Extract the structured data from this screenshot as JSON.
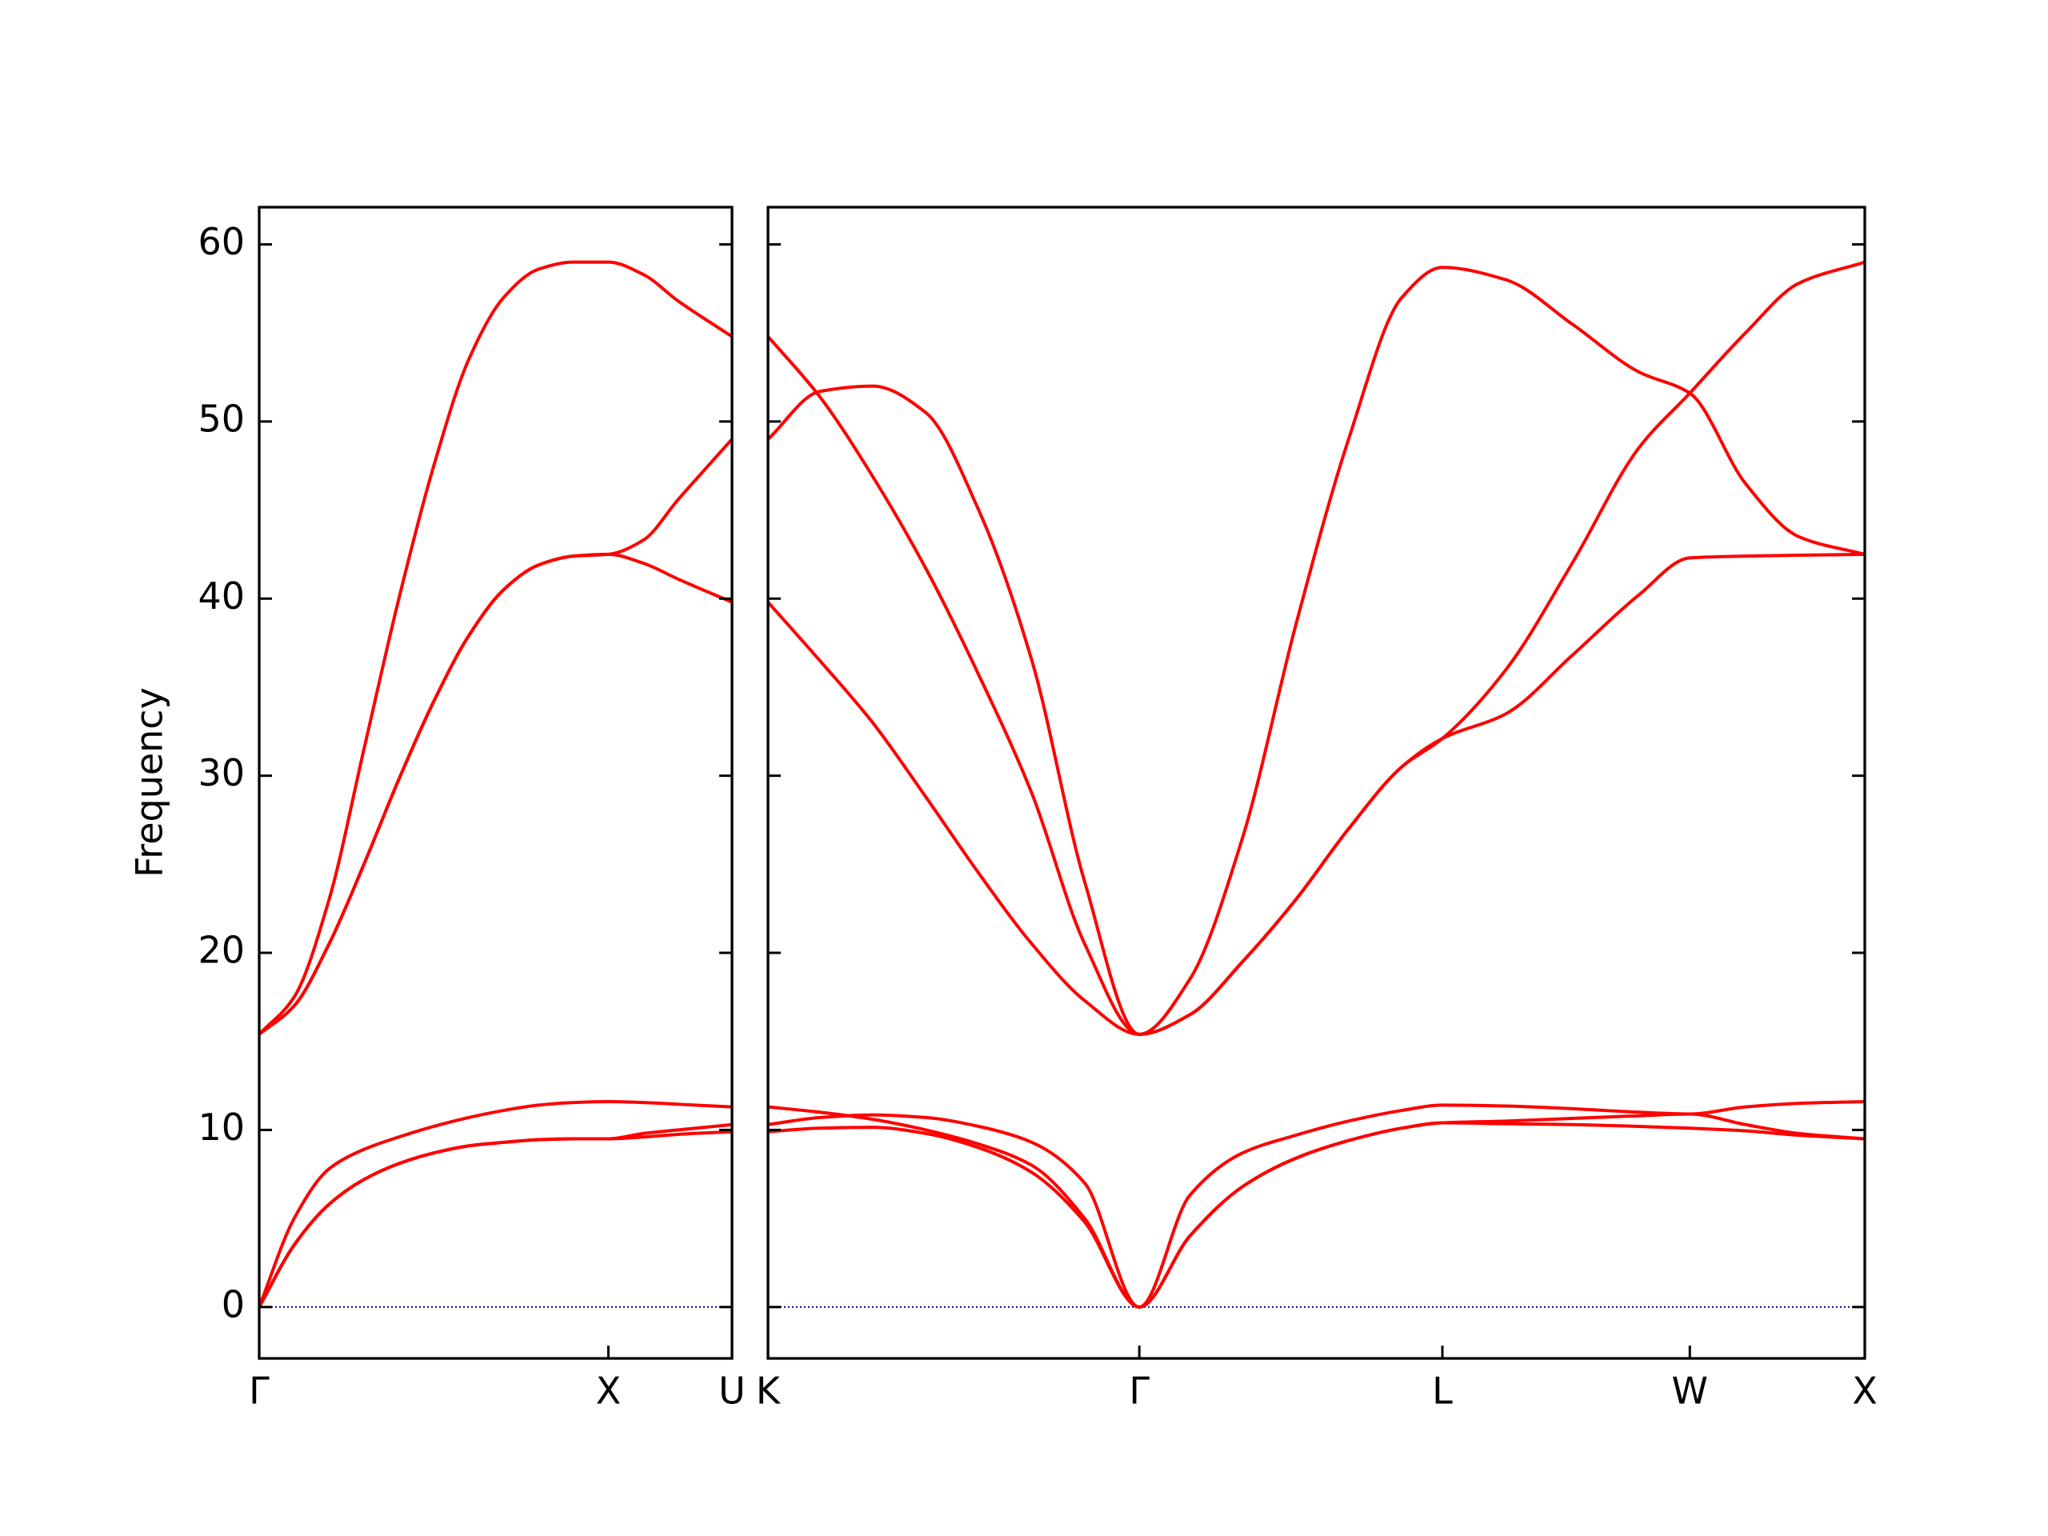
{
  "chart_data": [
    {
      "type": "line",
      "ylabel": "Frequency",
      "x": [
        0,
        0.1,
        0.2,
        0.3,
        0.4,
        0.5,
        0.6,
        0.7,
        0.8,
        0.9,
        1.0,
        1.1,
        1.2,
        1.354
      ],
      "xlim": [
        0,
        1.354
      ],
      "xticks": [
        {
          "value": 0,
          "label": "Γ"
        },
        {
          "value": 1,
          "label": "X"
        },
        {
          "value": 1.354,
          "label": "U"
        }
      ],
      "ylim": [
        -2.9,
        62.1
      ],
      "yticks": [
        0,
        10,
        20,
        30,
        40,
        50,
        60
      ],
      "show_ytick_labels": true,
      "reference_line": {
        "y": 0,
        "color": "#00008b"
      },
      "series": [
        {
          "color": "#ff0000",
          "values": [
            0,
            3.5,
            5.8,
            7.2,
            8.1,
            8.7,
            9.1,
            9.3,
            9.45,
            9.5,
            9.5,
            9.6,
            9.75,
            9.9
          ]
        },
        {
          "color": "#ff0000",
          "values": [
            0,
            3.5,
            5.8,
            7.2,
            8.1,
            8.7,
            9.1,
            9.3,
            9.45,
            9.5,
            9.5,
            9.8,
            10.0,
            10.3
          ]
        },
        {
          "color": "#ff0000",
          "values": [
            0,
            5.0,
            7.8,
            8.9,
            9.6,
            10.2,
            10.7,
            11.1,
            11.4,
            11.55,
            11.6,
            11.55,
            11.45,
            11.3
          ]
        },
        {
          "color": "#ff0000",
          "values": [
            15.4,
            17,
            20.5,
            25,
            29.8,
            34.2,
            37.9,
            40.5,
            41.9,
            42.4,
            42.5,
            42.0,
            41.1,
            39.8
          ]
        },
        {
          "color": "#ff0000",
          "values": [
            15.4,
            17,
            20.5,
            25,
            29.8,
            34.2,
            37.9,
            40.5,
            41.9,
            42.4,
            42.5,
            43.3,
            45.6,
            49
          ]
        },
        {
          "color": "#ff0000",
          "values": [
            15.4,
            17.5,
            23,
            31.5,
            40,
            47.5,
            53.5,
            57,
            58.6,
            59.0,
            59.0,
            58.3,
            56.8,
            54.8
          ]
        }
      ]
    },
    {
      "type": "line",
      "x": [
        1.354,
        1.502,
        1.653,
        1.805,
        1.956,
        2.108,
        2.259,
        2.415,
        2.559,
        2.71,
        2.862,
        3.013,
        3.165,
        3.281,
        3.463,
        3.652,
        3.842,
        3.988,
        4.147,
        4.299,
        4.488
      ],
      "xlim": [
        1.354,
        4.488
      ],
      "xticks": [
        {
          "value": 1.354,
          "label": "K"
        },
        {
          "value": 2.415,
          "label": "Γ"
        },
        {
          "value": 3.281,
          "label": "L"
        },
        {
          "value": 3.988,
          "label": "W"
        },
        {
          "value": 4.488,
          "label": "X"
        }
      ],
      "ylim": [
        -2.9,
        62.1
      ],
      "yticks": [
        0,
        10,
        20,
        30,
        40,
        50,
        60
      ],
      "show_ytick_labels": false,
      "reference_line": {
        "y": 0,
        "color": "#00008b"
      },
      "series": [
        {
          "color": "#ff0000",
          "values": [
            9.9,
            10.1,
            10.15,
            9.8,
            9.0,
            7.6,
            4.8,
            0,
            4.0,
            6.8,
            8.4,
            9.4,
            10.1,
            10.4,
            10.35,
            10.3,
            10.2,
            10.1,
            9.95,
            9.7,
            9.5
          ]
        },
        {
          "color": "#ff0000",
          "values": [
            10.3,
            10.7,
            10.85,
            10.7,
            10.2,
            9.3,
            7.0,
            0,
            4.0,
            6.8,
            8.4,
            9.4,
            10.1,
            10.4,
            10.5,
            10.65,
            10.8,
            10.9,
            10.3,
            9.8,
            9.5
          ]
        },
        {
          "color": "#ff0000",
          "values": [
            11.3,
            11.0,
            10.6,
            10.0,
            9.2,
            8.0,
            5.0,
            0,
            6.3,
            8.7,
            9.7,
            10.5,
            11.1,
            11.4,
            11.35,
            11.2,
            11.0,
            10.9,
            11.3,
            11.5,
            11.6
          ]
        },
        {
          "color": "#ff0000",
          "values": [
            39.8,
            36.5,
            33,
            28.8,
            24.5,
            20.5,
            17.3,
            15.4,
            16.5,
            19.5,
            23,
            27,
            30.5,
            32.1,
            33.5,
            36.8,
            40.2,
            42.3,
            42.4,
            42.45,
            42.5
          ]
        },
        {
          "color": "#ff0000",
          "values": [
            49,
            51.7,
            52.0,
            50.5,
            45,
            36.5,
            24,
            15.4,
            16.5,
            19.5,
            23,
            27,
            30.5,
            32.1,
            36,
            42,
            48.5,
            51.6,
            55,
            57.8,
            59
          ]
        },
        {
          "color": "#ff0000",
          "values": [
            54.8,
            51.4,
            46.9,
            41.7,
            35.7,
            29,
            20.5,
            15.4,
            18.5,
            26.5,
            38.5,
            49,
            57,
            58.7,
            58,
            55.5,
            52.8,
            51.6,
            46.5,
            43.5,
            42.5
          ]
        }
      ]
    }
  ]
}
